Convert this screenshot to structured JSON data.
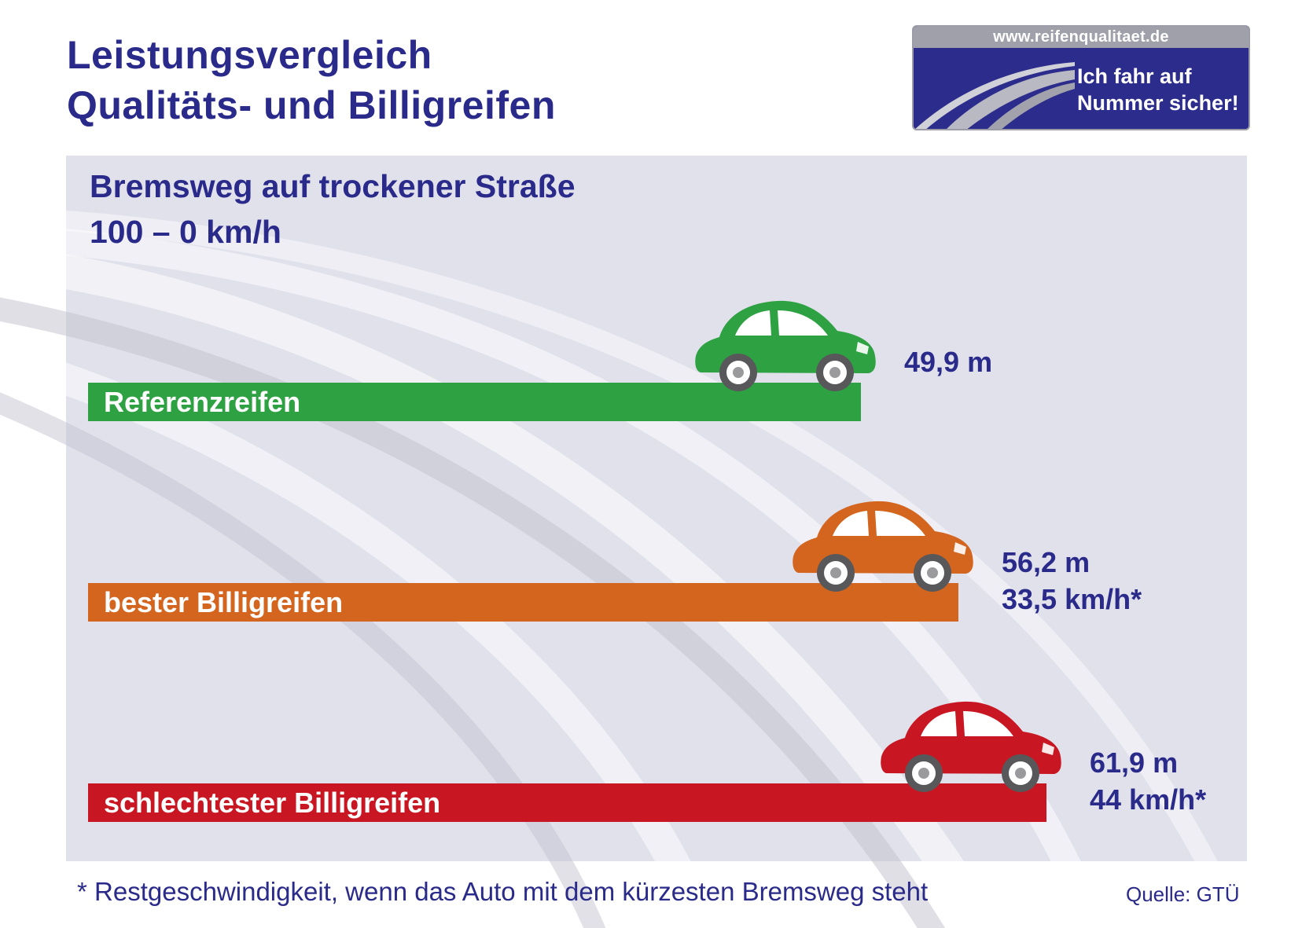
{
  "header": {
    "title_line1": "Leistungsvergleich",
    "title_line2": "Qualitäts- und Billigreifen"
  },
  "logo": {
    "url": "www.reifenqualitaet.de",
    "slogan_line1": "Ich fahr auf",
    "slogan_line2": "Nummer sicher!",
    "icon": "road-icon"
  },
  "chart_data": {
    "type": "bar",
    "orientation": "horizontal",
    "title": "Bremsweg auf trockener Straße",
    "subtitle": "100 – 0 km/h",
    "categories": [
      "Referenzreifen",
      "bester Billigreifen",
      "schlechtester Billigreifen"
    ],
    "values": [
      49.9,
      56.2,
      61.9
    ],
    "unit": "m",
    "value_labels": [
      "49,9 m",
      "56,2 m",
      "61,9 m"
    ],
    "residual_speed_labels": [
      "",
      "33,5 km/h*",
      "44 km/h*"
    ],
    "residual_speed_kmh": [
      null,
      33.5,
      44
    ],
    "colors": [
      "#2ea143",
      "#d4651f",
      "#c81722"
    ],
    "marker_icon": "car-icon",
    "grid": false,
    "legend": "none"
  },
  "footnote": "* Restgeschwindigkeit, wenn das Auto mit dem kürzesten Bremsweg steht",
  "source": "Quelle: GTÜ",
  "colors": {
    "navy": "#2a2a8a",
    "panel": "#e1e1ec",
    "logo_bg": "#2c2c8c",
    "logo_url_bg": "#a0a0aa"
  }
}
